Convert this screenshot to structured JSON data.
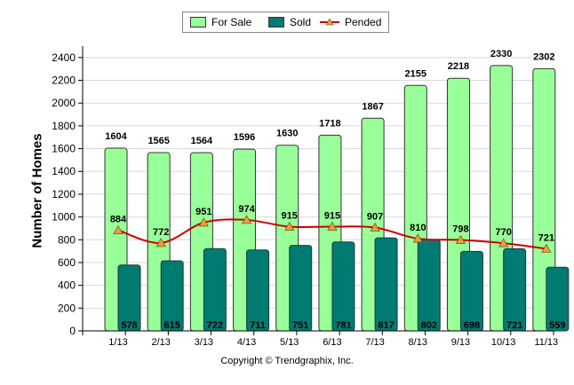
{
  "chart_data": {
    "type": "bar",
    "categories": [
      "1/13",
      "2/13",
      "3/13",
      "4/13",
      "5/13",
      "6/13",
      "7/13",
      "8/13",
      "9/13",
      "10/13",
      "11/13"
    ],
    "series": [
      {
        "name": "For Sale",
        "kind": "bar",
        "color": "#99ff99",
        "values": [
          1604,
          1565,
          1564,
          1596,
          1630,
          1718,
          1867,
          2155,
          2218,
          2330,
          2302
        ]
      },
      {
        "name": "Sold",
        "kind": "bar",
        "color": "#007b72",
        "values": [
          578,
          615,
          722,
          711,
          751,
          781,
          817,
          802,
          698,
          721,
          559
        ]
      },
      {
        "name": "Pended",
        "kind": "line",
        "color": "#cc0000",
        "marker_color": "#e8a040",
        "values": [
          884,
          772,
          951,
          974,
          915,
          915,
          907,
          810,
          798,
          770,
          721
        ]
      }
    ],
    "ylabel": "Number of Homes",
    "xlabel": "",
    "ylim": [
      0,
      2500
    ],
    "yticks": [
      0,
      200,
      400,
      600,
      800,
      1000,
      1200,
      1400,
      1600,
      1800,
      2000,
      2200,
      2400
    ],
    "legend_position": "top-center"
  },
  "legend": {
    "for_sale": "For Sale",
    "sold": "Sold",
    "pended": "Pended"
  },
  "footer": {
    "credit": "Copyright © Trendgraphix, Inc."
  }
}
